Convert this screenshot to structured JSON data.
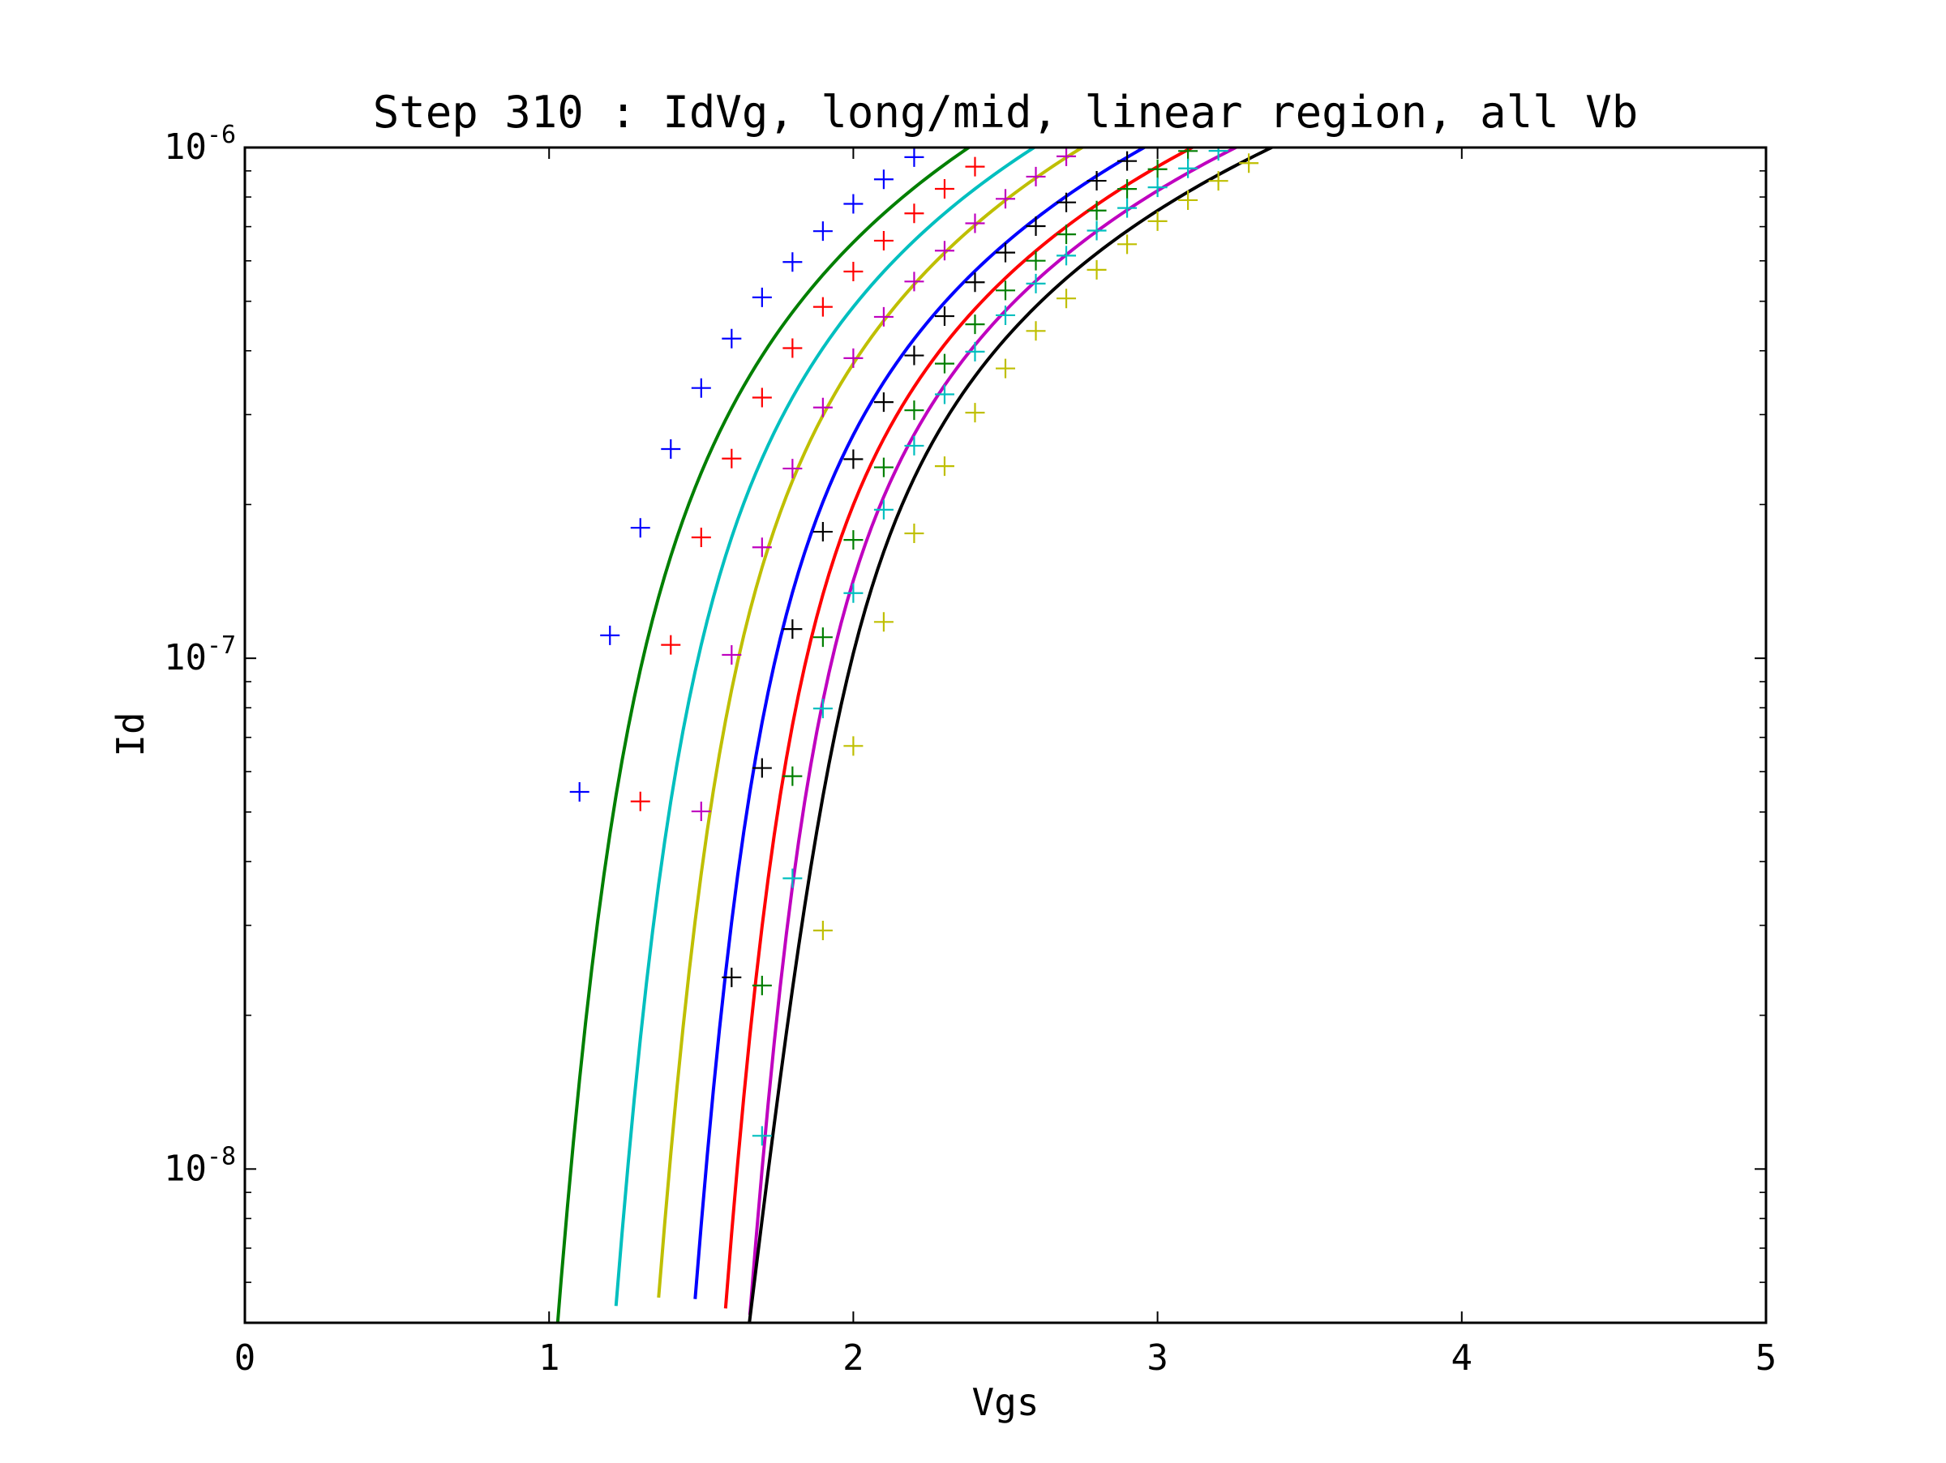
{
  "chart_data": {
    "type": "line",
    "title": "Step 310 : IdVg, long/mid, linear region, all Vb",
    "xlabel": "Vgs",
    "ylabel": "Id",
    "xlim": [
      0,
      5
    ],
    "ylim": [
      5e-09,
      1e-06
    ],
    "yscale": "log",
    "grid": false,
    "x_ticks": [
      {
        "value": 0,
        "label": "0"
      },
      {
        "value": 1,
        "label": "1"
      },
      {
        "value": 2,
        "label": "2"
      },
      {
        "value": 3,
        "label": "3"
      },
      {
        "value": 4,
        "label": "4"
      },
      {
        "value": 5,
        "label": "5"
      }
    ],
    "y_ticks": [
      {
        "value": 1e-08,
        "base": "10",
        "exp": "-8"
      },
      {
        "value": 1e-07,
        "base": "10",
        "exp": "-7"
      },
      {
        "value": 1e-06,
        "base": "10",
        "exp": "-6"
      }
    ],
    "model_curves": [
      {
        "color": "#007f00",
        "vt": 1.05,
        "a": 0.99,
        "b": 0.42
      },
      {
        "color": "#00bfbf",
        "vt": 1.25,
        "a": 0.91,
        "b": 0.3
      },
      {
        "color": "#bfbf00",
        "vt": 1.4,
        "a": 0.86,
        "b": 0.22
      },
      {
        "color": "#0000ff",
        "vt": 1.53,
        "a": 0.78,
        "b": 0.16
      },
      {
        "color": "#ff0000",
        "vt": 1.65,
        "a": 0.73,
        "b": 0.1
      },
      {
        "color": "#bf00bf",
        "vt": 1.75,
        "a": 0.69,
        "b": 0.06
      },
      {
        "color": "#000000",
        "vt": 1.86,
        "a": 0.66,
        "b": 0.0
      }
    ],
    "measured_series": [
      {
        "color": "#0000ff",
        "vt": 0.95,
        "a": 0.95,
        "b": 0.3,
        "x_start": 1.1
      },
      {
        "color": "#ff0000",
        "vt": 1.15,
        "a": 0.91,
        "b": 0.3,
        "x_start": 1.3
      },
      {
        "color": "#bf00bf",
        "vt": 1.35,
        "a": 0.87,
        "b": 0.3,
        "x_start": 1.5
      },
      {
        "color": "#000000",
        "vt": 1.52,
        "a": 0.83,
        "b": 0.3,
        "x_start": 1.6
      },
      {
        "color": "#007f00",
        "vt": 1.62,
        "a": 0.8,
        "b": 0.3,
        "x_start": 1.7
      },
      {
        "color": "#00bfbf",
        "vt": 1.67,
        "a": 0.77,
        "b": 0.3,
        "x_start": 1.7
      },
      {
        "color": "#bfbf00",
        "vt": 1.79,
        "a": 0.74,
        "b": 0.3,
        "x_start": 1.9
      }
    ],
    "x_step": 0.1
  }
}
